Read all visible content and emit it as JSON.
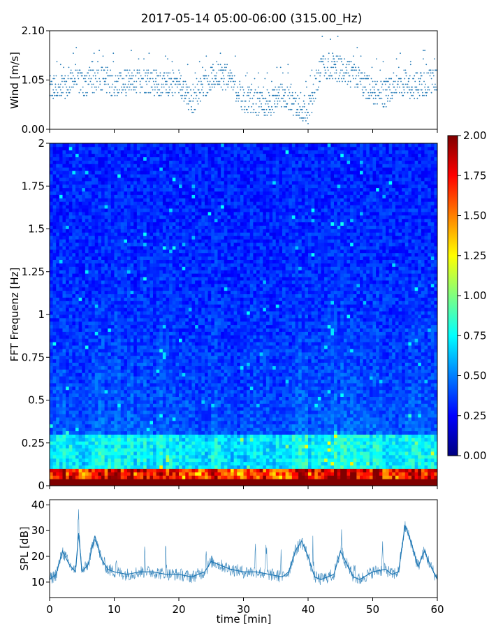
{
  "chart_data": [
    {
      "type": "scatter",
      "title": "2017-05-14 05:00-06:00 (315.00_Hz)",
      "ylabel": "Wind [m/s]",
      "xlim": [
        0,
        60
      ],
      "ylim": [
        0,
        2.1
      ],
      "yticks": [
        "0.00",
        "1.05",
        "2.10"
      ],
      "color": "#1f77b4",
      "series": [
        {
          "x": [
            0,
            2,
            4,
            6,
            8,
            10,
            12,
            14,
            16,
            18,
            20,
            22,
            24,
            26,
            28,
            30,
            32,
            34,
            36,
            38,
            40,
            42,
            44,
            46,
            48,
            50,
            52,
            54,
            56,
            58,
            60
          ],
          "values": [
            0.85,
            0.9,
            1.05,
            0.95,
            1.1,
            0.95,
            1.0,
            1.05,
            1.0,
            0.95,
            1.05,
            0.55,
            0.95,
            1.2,
            1.0,
            0.65,
            0.55,
            0.55,
            0.75,
            0.55,
            0.4,
            1.3,
            1.35,
            1.2,
            1.05,
            0.8,
            0.75,
            1.05,
            0.9,
            1.0,
            1.05
          ]
        }
      ]
    },
    {
      "type": "heatmap",
      "ylabel": "FFT Frequenz [Hz]",
      "xlim": [
        0,
        60
      ],
      "ylim": [
        0,
        2
      ],
      "yticks": [
        "0",
        "0.25",
        "0.5",
        "0.75",
        "1",
        "1.25",
        "1.5",
        "1.75",
        "2"
      ],
      "colorbar": {
        "range": [
          0,
          2
        ],
        "ticks": [
          "0.00",
          "0.25",
          "0.50",
          "0.75",
          "1.00",
          "1.25",
          "1.50",
          "1.75",
          "2.00"
        ],
        "colormap": "jet"
      }
    },
    {
      "type": "line",
      "xlabel": "time [min]",
      "ylabel": "SPL [dB]",
      "xlim": [
        0,
        60
      ],
      "ylim": [
        4,
        42
      ],
      "xticks": [
        "0",
        "10",
        "20",
        "30",
        "40",
        "50",
        "60"
      ],
      "yticks": [
        "10",
        "20",
        "30",
        "40"
      ],
      "color": "#1f77b4",
      "series": [
        {
          "x": [
            0,
            1,
            2,
            3,
            4,
            4.5,
            5,
            6,
            7,
            8,
            9,
            10,
            12,
            14,
            16,
            18,
            20,
            22,
            23,
            24,
            25,
            28,
            30,
            32,
            34,
            36,
            37,
            38,
            39,
            40,
            41,
            42,
            44,
            45,
            46,
            47,
            48,
            50,
            52,
            53,
            54,
            55,
            56,
            57,
            58,
            59,
            60
          ],
          "values": [
            11,
            13,
            22,
            17,
            14,
            29,
            14,
            17,
            28,
            19,
            15,
            14,
            13,
            14,
            14,
            13,
            13,
            12,
            13,
            14,
            18,
            15,
            14,
            14,
            13,
            12,
            14,
            22,
            26,
            20,
            12,
            11,
            13,
            22,
            17,
            12,
            11,
            14,
            15,
            13,
            14,
            32,
            25,
            16,
            22,
            16,
            11
          ]
        }
      ]
    }
  ]
}
